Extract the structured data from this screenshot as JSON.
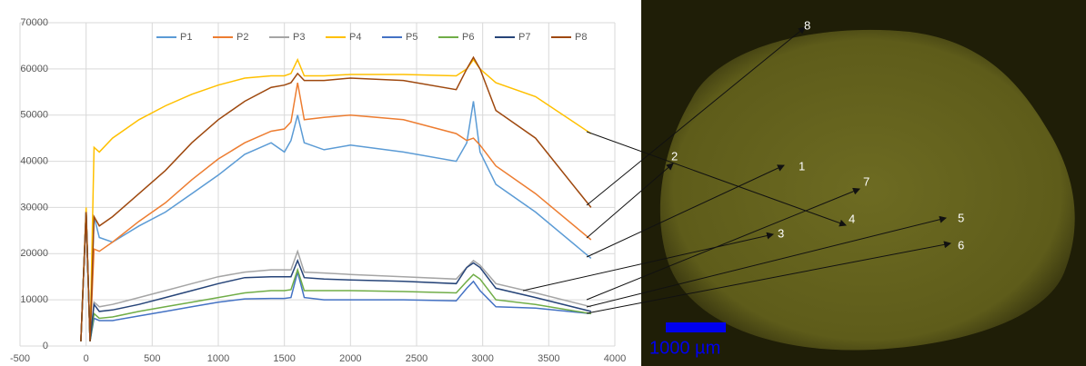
{
  "chart_data": {
    "type": "line",
    "x": [
      -40,
      0,
      30,
      60,
      100,
      200,
      400,
      600,
      800,
      1000,
      1200,
      1400,
      1500,
      1550,
      1600,
      1650,
      1800,
      2000,
      2400,
      2800,
      2880,
      2930,
      2980,
      3100,
      3400,
      3820
    ],
    "series": [
      {
        "name": "P1",
        "color": "#5b9bd5",
        "values": [
          1000,
          29000,
          1000,
          28000,
          23500,
          22500,
          26000,
          29000,
          33000,
          37000,
          41500,
          44000,
          42000,
          44500,
          50000,
          44000,
          42500,
          43500,
          42000,
          40000,
          44000,
          53000,
          42000,
          35000,
          29000,
          19000
        ]
      },
      {
        "name": "P2",
        "color": "#ed7d31",
        "values": [
          1000,
          29000,
          1000,
          21000,
          20500,
          22500,
          27000,
          31000,
          36000,
          40500,
          44000,
          46500,
          47000,
          48500,
          57000,
          49000,
          49500,
          50000,
          49000,
          46000,
          44500,
          45000,
          43500,
          39000,
          33000,
          23000
        ]
      },
      {
        "name": "P3",
        "color": "#a5a5a5",
        "values": [
          1000,
          29000,
          1000,
          9500,
          8500,
          9000,
          10500,
          12000,
          13500,
          15000,
          16000,
          16500,
          16500,
          16500,
          20500,
          16000,
          15800,
          15500,
          15000,
          14500,
          17000,
          18500,
          17500,
          13500,
          11500,
          8500
        ]
      },
      {
        "name": "P4",
        "color": "#ffc000",
        "values": [
          1000,
          30000,
          1000,
          43000,
          42000,
          45000,
          49000,
          52000,
          54500,
          56500,
          58000,
          58500,
          58500,
          59000,
          62000,
          58500,
          58500,
          58800,
          58800,
          58500,
          60000,
          62000,
          60000,
          57000,
          54000,
          46000
        ]
      },
      {
        "name": "P5",
        "color": "#4472c4",
        "values": [
          1000,
          29000,
          1000,
          6000,
          5500,
          5500,
          6500,
          7500,
          8500,
          9500,
          10200,
          10300,
          10300,
          10500,
          16000,
          10500,
          10000,
          10000,
          10000,
          9800,
          12500,
          14000,
          12000,
          8500,
          8200,
          7000
        ]
      },
      {
        "name": "P6",
        "color": "#70ad47",
        "values": [
          1000,
          29000,
          1000,
          7000,
          6000,
          6300,
          7500,
          8500,
          9500,
          10500,
          11500,
          12000,
          12000,
          12200,
          16500,
          12000,
          12000,
          12000,
          11800,
          11500,
          14000,
          15500,
          14500,
          10000,
          9000,
          7000
        ]
      },
      {
        "name": "P7",
        "color": "#264478",
        "values": [
          1000,
          29000,
          1000,
          9000,
          7500,
          7800,
          9000,
          10500,
          12000,
          13500,
          14800,
          15000,
          15000,
          15000,
          18500,
          14800,
          14500,
          14300,
          14000,
          13500,
          17000,
          18000,
          17000,
          12500,
          10500,
          7500
        ]
      },
      {
        "name": "P8",
        "color": "#9e480e",
        "values": [
          1000,
          29000,
          1000,
          28000,
          26000,
          28000,
          33000,
          38000,
          44000,
          49000,
          53000,
          56000,
          56500,
          57000,
          59000,
          57500,
          57500,
          58000,
          57500,
          55500,
          60000,
          62500,
          60000,
          51000,
          45000,
          30000
        ]
      }
    ],
    "xlim": [
      -500,
      4000
    ],
    "xticks": [
      -500,
      0,
      500,
      1000,
      1500,
      2000,
      2500,
      3000,
      3500,
      4000
    ],
    "ylim": [
      0,
      70000
    ],
    "yticks": [
      0,
      10000,
      20000,
      30000,
      40000,
      50000,
      60000,
      70000
    ],
    "grid": true,
    "legend": "top"
  },
  "image": {
    "point_labels": [
      "1",
      "2",
      "3",
      "4",
      "5",
      "6",
      "7",
      "8"
    ],
    "scale_bar": "1000 µm"
  }
}
